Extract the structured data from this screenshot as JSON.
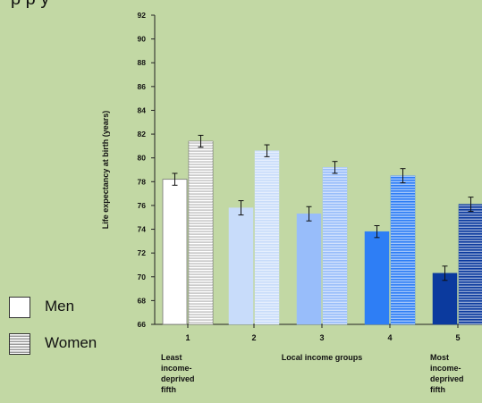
{
  "title": "p                                  p        y",
  "legend": [
    {
      "label": "Men",
      "pattern": "solid",
      "color": "#ffffff"
    },
    {
      "label": "Women",
      "pattern": "striped",
      "color": "#ffffff"
    }
  ],
  "chart_data": {
    "type": "bar",
    "title": "",
    "ylabel": "Life expectancy at birth (years)",
    "xlabel": "Local income groups",
    "ylim": [
      66,
      92
    ],
    "yticks": [
      66,
      68,
      70,
      72,
      74,
      76,
      78,
      80,
      82,
      84,
      86,
      88,
      90,
      92
    ],
    "categories": [
      "1",
      "2",
      "3",
      "4",
      "5"
    ],
    "category_notes": {
      "first": [
        "Least",
        "income-",
        "deprived",
        "fifth"
      ],
      "last": [
        "Most",
        "income-",
        "deprived",
        "fifth"
      ]
    },
    "colors": [
      "#ffffff",
      "#c8dcfa",
      "#98bdfa",
      "#2e7ef5",
      "#0b3a9e"
    ],
    "series": [
      {
        "name": "Men",
        "values": [
          78.2,
          75.8,
          75.3,
          73.8,
          70.3
        ],
        "error": [
          0.5,
          0.6,
          0.6,
          0.5,
          0.6
        ]
      },
      {
        "name": "Women",
        "values": [
          81.4,
          80.6,
          79.2,
          78.5,
          76.1
        ],
        "error": [
          0.5,
          0.5,
          0.5,
          0.6,
          0.6
        ]
      }
    ]
  }
}
